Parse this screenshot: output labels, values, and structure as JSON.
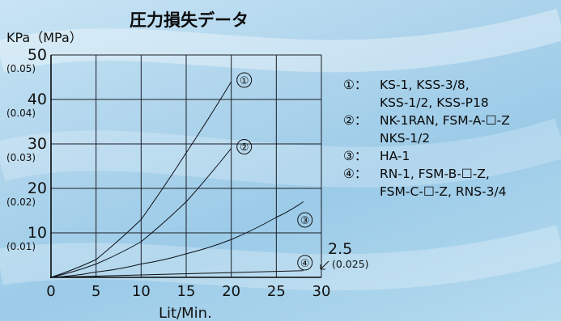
{
  "chart_data": {
    "type": "line",
    "title": "圧力損失データ",
    "ylabel": "KPa（MPa）",
    "xlabel": "Lit/Min.",
    "xlim": [
      0,
      30
    ],
    "ylim": [
      0,
      50
    ],
    "grid": true,
    "x_ticks": [
      "0",
      "5",
      "10",
      "15",
      "20",
      "25",
      "30"
    ],
    "y_ticks": [
      {
        "value": 50,
        "label": "50",
        "sub": "(0.05)"
      },
      {
        "value": 40,
        "label": "40",
        "sub": "(0.04)"
      },
      {
        "value": 30,
        "label": "30",
        "sub": "(0.03)"
      },
      {
        "value": 20,
        "label": "20",
        "sub": "(0.02)"
      },
      {
        "value": 10,
        "label": "10",
        "sub": "(0.01)"
      }
    ],
    "series": [
      {
        "name": "①",
        "x": [
          0,
          5,
          10,
          15,
          20
        ],
        "y": [
          0,
          4,
          13,
          28,
          44
        ]
      },
      {
        "name": "②",
        "x": [
          0,
          5,
          10,
          15,
          20
        ],
        "y": [
          0,
          3,
          8,
          17,
          29
        ]
      },
      {
        "name": "③",
        "x": [
          0,
          5,
          10,
          15,
          20,
          25,
          28
        ],
        "y": [
          0,
          1.2,
          3,
          5.3,
          8.5,
          13.5,
          17
        ]
      },
      {
        "name": "④",
        "x": [
          0,
          28
        ],
        "y": [
          0,
          1.5
        ]
      }
    ],
    "annotation": {
      "label": "2.5",
      "sub": "(0.025)"
    },
    "legend_position": "right"
  },
  "legend": [
    {
      "key": "①：",
      "lines": [
        "KS-1, KSS-3/8,",
        "KSS-1/2, KSS-P18"
      ]
    },
    {
      "key": "②：",
      "lines": [
        "NK-1RAN, FSM-A-☐-Z",
        "NKS-1/2"
      ]
    },
    {
      "key": "③：",
      "lines": [
        "HA-1"
      ]
    },
    {
      "key": "④：",
      "lines": [
        "RN-1, FSM-B-☐-Z,",
        "FSM-C-☐-Z, RNS-3/4"
      ]
    }
  ]
}
